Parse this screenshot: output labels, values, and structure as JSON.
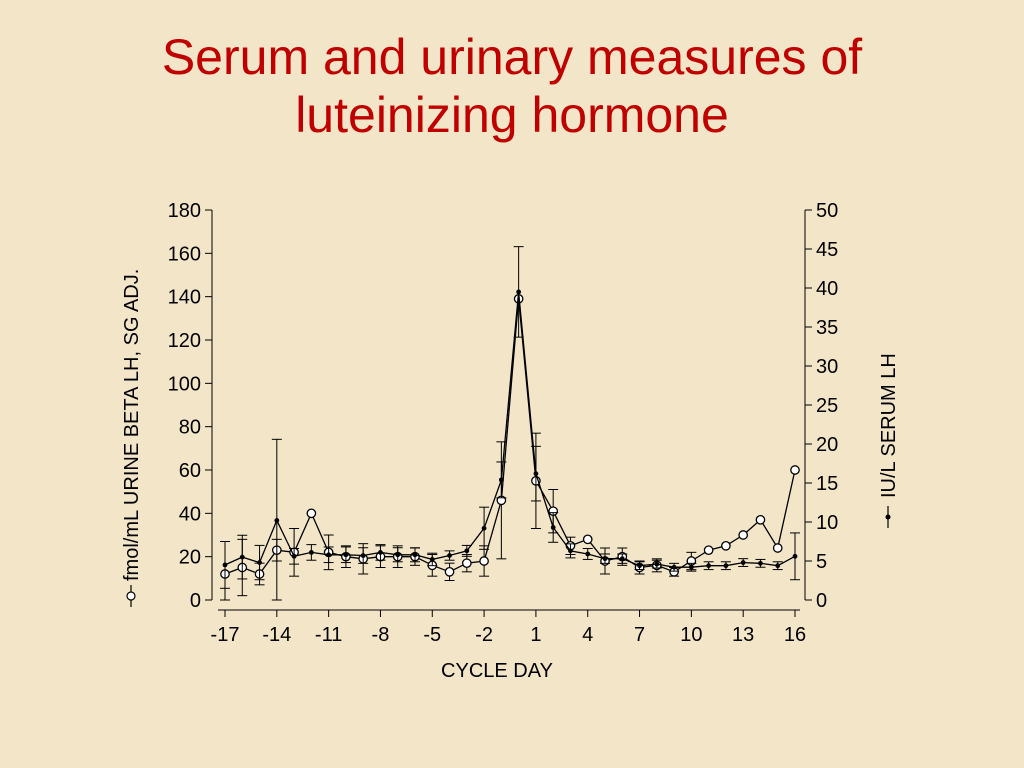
{
  "slide": {
    "title_line1": "Serum and urinary measures of",
    "title_line2": "luteinizing hormone",
    "background_color": "#f3e6c8",
    "title_color": "#c00000"
  },
  "chart_data": {
    "type": "line",
    "xlabel": "CYCLE DAY",
    "ylabel_left": "fmol/mL URINE BETA LH, SG ADJ.",
    "ylabel_right": "IU/L SERUM LH",
    "x_ticks": [
      "-17",
      "-14",
      "-11",
      "-8",
      "-5",
      "-2",
      "1",
      "4",
      "7",
      "10",
      "13",
      "16"
    ],
    "xlim": [
      -17,
      16
    ],
    "ylim_left": [
      0,
      180
    ],
    "yticks_left": [
      "0",
      "20",
      "40",
      "60",
      "80",
      "100",
      "120",
      "140",
      "160",
      "180"
    ],
    "ylim_right": [
      0,
      50
    ],
    "yticks_right": [
      "0",
      "5",
      "10",
      "15",
      "20",
      "25",
      "30",
      "35",
      "40",
      "45",
      "50"
    ],
    "grid": false,
    "series": [
      {
        "axis": "left",
        "marker": "open-circle",
        "x": [
          -17,
          -16,
          -15,
          -14,
          -13,
          -12,
          -11,
          -10,
          -9,
          -8,
          -7,
          -6,
          -5,
          -4,
          -3,
          -2,
          -1,
          0,
          1,
          2,
          3,
          4,
          5,
          6,
          7,
          8,
          9,
          10,
          11,
          12,
          13,
          14,
          15,
          16
        ],
        "y": [
          12,
          15,
          12,
          23,
          22,
          40,
          22,
          20,
          19,
          20,
          20,
          20,
          16,
          13,
          17,
          18,
          46,
          139,
          55,
          41,
          25,
          28,
          18,
          20,
          15,
          16,
          13,
          18,
          23,
          25,
          30,
          37,
          24,
          60
        ],
        "err": [
          15,
          13,
          5,
          5,
          11,
          0,
          8,
          5,
          7,
          5,
          5,
          4,
          5,
          4,
          4,
          7,
          27,
          0,
          22,
          10,
          4,
          0,
          6,
          4,
          3,
          3,
          2,
          4,
          0,
          0,
          0,
          0,
          0,
          0
        ]
      },
      {
        "axis": "right",
        "marker": "filled-dot",
        "x": [
          -17,
          -16,
          -15,
          -14,
          -13,
          -12,
          -11,
          -10,
          -9,
          -8,
          -7,
          -6,
          -5,
          -4,
          -3,
          -2,
          -1,
          0,
          1,
          2,
          3,
          4,
          5,
          6,
          7,
          8,
          9,
          10,
          11,
          12,
          13,
          14,
          15,
          16
        ],
        "y": [
          4.5,
          5.5,
          4.8,
          10.2,
          5.6,
          6.1,
          5.8,
          5.8,
          5.7,
          6.1,
          5.8,
          5.8,
          5.2,
          5.7,
          6.3,
          9.2,
          15.4,
          39.5,
          16.2,
          9.3,
          6.3,
          5.9,
          5.3,
          5.3,
          4.4,
          4.6,
          4.2,
          4.2,
          4.4,
          4.4,
          4.8,
          4.7,
          4.4,
          5.6
        ],
        "err": [
          3.0,
          2.8,
          2.2,
          10.4,
          1.0,
          1.0,
          1.0,
          1.0,
          1.0,
          1.0,
          0.9,
          0.9,
          0.8,
          0.6,
          0.7,
          2.7,
          2.3,
          5.8,
          3.5,
          1.9,
          0.9,
          0.7,
          0.6,
          0.6,
          0.5,
          0.5,
          0.5,
          0.5,
          0.5,
          0.5,
          0.5,
          0.5,
          0.5,
          3.0
        ]
      }
    ]
  }
}
